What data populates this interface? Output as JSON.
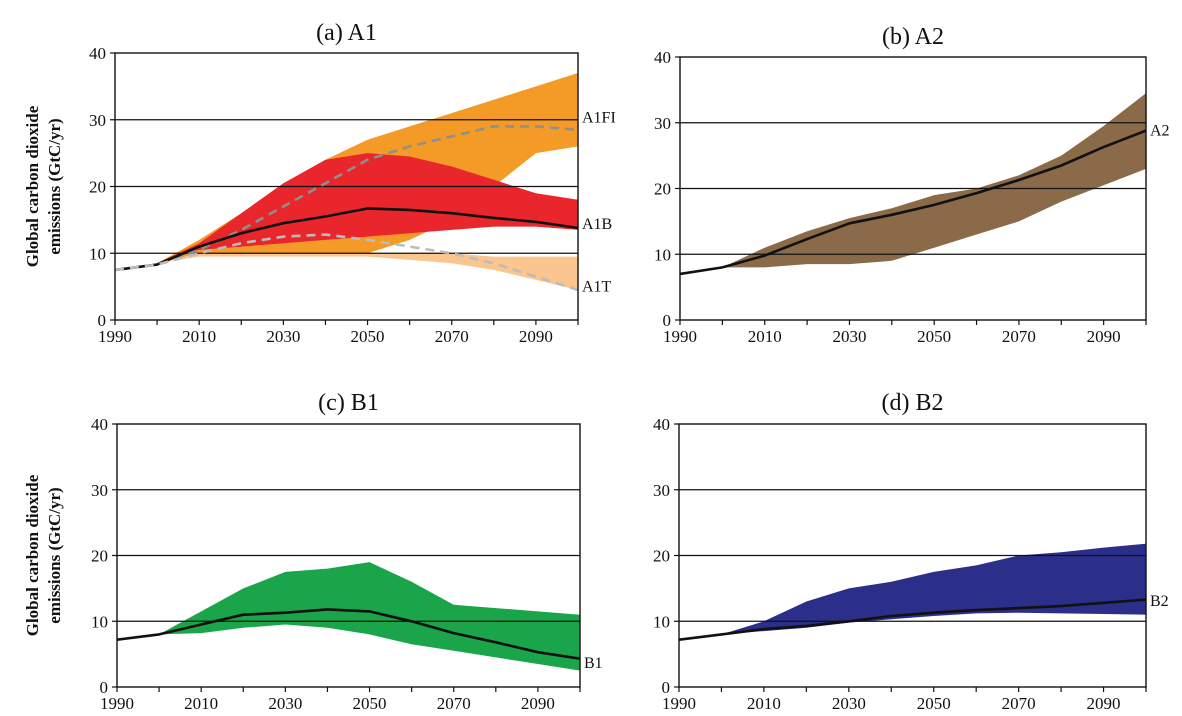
{
  "figure": {
    "ylabel_lines": [
      "Global carbon dioxide",
      "emissions (GtC/yr)"
    ]
  },
  "chart_data": [
    {
      "type": "area",
      "title": "(a) A1",
      "ylim": [
        0,
        40
      ],
      "xlim": [
        1990,
        2100
      ],
      "yticks": [
        0,
        10,
        20,
        30,
        40
      ],
      "xticks": [
        1990,
        2010,
        2030,
        2050,
        2070,
        2090
      ],
      "grid": "horizontal",
      "series": [
        {
          "name": "A1FI",
          "kind": "band",
          "color": "#f39a27",
          "x": [
            1990,
            2000,
            2010,
            2020,
            2030,
            2040,
            2050,
            2060,
            2070,
            2080,
            2090,
            2100
          ],
          "upper": [
            7.5,
            8.5,
            12,
            16,
            20,
            24,
            27,
            29,
            31,
            33,
            35,
            37
          ],
          "lower": [
            7.5,
            8.5,
            10,
            10,
            10,
            10,
            10,
            12,
            15,
            20,
            25,
            26
          ]
        },
        {
          "name": "A1B",
          "kind": "band",
          "color": "#e8262c",
          "x": [
            1990,
            2000,
            2010,
            2020,
            2030,
            2040,
            2050,
            2060,
            2070,
            2080,
            2090,
            2100
          ],
          "upper": [
            7.5,
            8.5,
            11.5,
            16,
            20.5,
            24,
            25,
            24.5,
            23,
            21,
            19,
            18
          ],
          "lower": [
            7.5,
            8.5,
            10.5,
            11,
            11.5,
            12,
            12.5,
            13,
            13.5,
            14,
            14,
            13.5
          ]
        },
        {
          "name": "A1T",
          "kind": "band",
          "color": "#fac58e",
          "x": [
            1990,
            2000,
            2010,
            2020,
            2030,
            2040,
            2050,
            2060,
            2070,
            2080,
            2090,
            2100
          ],
          "upper": [
            7.5,
            8.5,
            10,
            10,
            10,
            10,
            10,
            10,
            10,
            9.5,
            9.5,
            9.5
          ],
          "lower": [
            7.5,
            8.5,
            9.5,
            9.5,
            9.5,
            9.5,
            9.5,
            9,
            8.5,
            7.5,
            6,
            4.5
          ]
        },
        {
          "name": "A1FI",
          "kind": "line",
          "color": "#8f8f8f",
          "dash": "9,6",
          "x": [
            1990,
            2000,
            2010,
            2020,
            2030,
            2040,
            2050,
            2060,
            2070,
            2080,
            2090,
            2100
          ],
          "values": [
            7.5,
            8.3,
            10.5,
            13.5,
            17,
            20.5,
            24,
            26,
            27.5,
            29,
            29,
            28.5
          ]
        },
        {
          "name": "A1B",
          "kind": "line",
          "color": "#111111",
          "dash": "",
          "x": [
            1990,
            2000,
            2010,
            2020,
            2030,
            2040,
            2050,
            2060,
            2070,
            2080,
            2090,
            2100
          ],
          "values": [
            7.5,
            8.3,
            11,
            13,
            14.5,
            15.5,
            16.7,
            16.5,
            16,
            15.3,
            14.7,
            13.8
          ]
        },
        {
          "name": "A1T",
          "kind": "line",
          "color": "#bcbcbc",
          "dash": "9,6",
          "x": [
            1990,
            2000,
            2010,
            2020,
            2030,
            2040,
            2050,
            2060,
            2070,
            2080,
            2090,
            2100
          ],
          "values": [
            7.5,
            8.3,
            10,
            11.5,
            12.5,
            12.8,
            12,
            11,
            10,
            8.5,
            6.5,
            4.5
          ]
        }
      ],
      "annotations": [
        {
          "text": "A1FI",
          "x": 2100,
          "y": 30.5
        },
        {
          "text": "A1B",
          "x": 2100,
          "y": 14.5
        },
        {
          "text": "A1T",
          "x": 2100,
          "y": 5.2
        }
      ]
    },
    {
      "type": "area",
      "title": "(b) A2",
      "ylim": [
        0,
        40
      ],
      "xlim": [
        1990,
        2100
      ],
      "yticks": [
        0,
        10,
        20,
        30,
        40
      ],
      "xticks": [
        1990,
        2010,
        2030,
        2050,
        2070,
        2090
      ],
      "grid": "horizontal",
      "series": [
        {
          "name": "A2",
          "kind": "band",
          "color": "#8b6a4a",
          "x": [
            1990,
            2000,
            2010,
            2020,
            2030,
            2040,
            2050,
            2060,
            2070,
            2080,
            2090,
            2100
          ],
          "upper": [
            7,
            8,
            11,
            13.5,
            15.5,
            17,
            19,
            20,
            22,
            25,
            29.5,
            34.5
          ],
          "lower": [
            7,
            8,
            8,
            8.5,
            8.5,
            9,
            11,
            13,
            15,
            18,
            20.5,
            23
          ]
        },
        {
          "name": "A2",
          "kind": "line",
          "color": "#111111",
          "dash": "",
          "x": [
            1990,
            2000,
            2010,
            2020,
            2030,
            2040,
            2050,
            2060,
            2070,
            2080,
            2090,
            2100
          ],
          "values": [
            7,
            8,
            9.8,
            12.3,
            14.7,
            16,
            17.5,
            19.3,
            21.3,
            23.5,
            26.3,
            28.8
          ]
        }
      ],
      "annotations": [
        {
          "text": "A2",
          "x": 2100,
          "y": 29
        }
      ]
    },
    {
      "type": "area",
      "title": "(c) B1",
      "ylim": [
        0,
        40
      ],
      "xlim": [
        1990,
        2100
      ],
      "yticks": [
        0,
        10,
        20,
        30,
        40
      ],
      "xticks": [
        1990,
        2010,
        2030,
        2050,
        2070,
        2090
      ],
      "grid": "horizontal",
      "series": [
        {
          "name": "B1",
          "kind": "band",
          "color": "#1aa54a",
          "x": [
            1990,
            2000,
            2010,
            2020,
            2030,
            2040,
            2050,
            2060,
            2070,
            2080,
            2090,
            2100
          ],
          "upper": [
            7.2,
            8,
            11.5,
            15,
            17.5,
            18,
            19,
            16,
            12.5,
            12,
            11.5,
            11
          ],
          "lower": [
            7.2,
            8,
            8.2,
            9,
            9.5,
            9,
            8,
            6.5,
            5.5,
            4.5,
            3.5,
            2.5
          ]
        },
        {
          "name": "B1",
          "kind": "line",
          "color": "#111111",
          "dash": "",
          "x": [
            1990,
            2000,
            2010,
            2020,
            2030,
            2040,
            2050,
            2060,
            2070,
            2080,
            2090,
            2100
          ],
          "values": [
            7.2,
            8,
            9.5,
            11,
            11.3,
            11.8,
            11.5,
            10,
            8.2,
            6.8,
            5.3,
            4.3
          ]
        }
      ],
      "annotations": [
        {
          "text": "B1",
          "x": 2100,
          "y": 3.8
        }
      ]
    },
    {
      "type": "area",
      "title": "(d) B2",
      "ylim": [
        0,
        40
      ],
      "xlim": [
        1990,
        2100
      ],
      "yticks": [
        0,
        10,
        20,
        30,
        40
      ],
      "xticks": [
        1990,
        2010,
        2030,
        2050,
        2070,
        2090
      ],
      "grid": "horizontal",
      "series": [
        {
          "name": "B2",
          "kind": "band",
          "color": "#2b2f8a",
          "x": [
            1990,
            2000,
            2010,
            2020,
            2030,
            2040,
            2050,
            2060,
            2070,
            2080,
            2090,
            2100
          ],
          "upper": [
            7.2,
            8,
            10,
            13,
            15,
            16,
            17.5,
            18.5,
            20,
            20.5,
            21.2,
            21.8
          ],
          "lower": [
            7.2,
            8,
            8.5,
            9,
            9.8,
            10.3,
            10.8,
            11.2,
            11.3,
            11.2,
            11.1,
            11
          ]
        },
        {
          "name": "B2",
          "kind": "line",
          "color": "#111111",
          "dash": "",
          "x": [
            1990,
            2000,
            2010,
            2020,
            2030,
            2040,
            2050,
            2060,
            2070,
            2080,
            2090,
            2100
          ],
          "values": [
            7.2,
            8,
            8.8,
            9.3,
            10,
            10.8,
            11.3,
            11.7,
            12,
            12.3,
            12.8,
            13.3
          ]
        }
      ],
      "annotations": [
        {
          "text": "B2",
          "x": 2100,
          "y": 13.2
        }
      ]
    }
  ]
}
